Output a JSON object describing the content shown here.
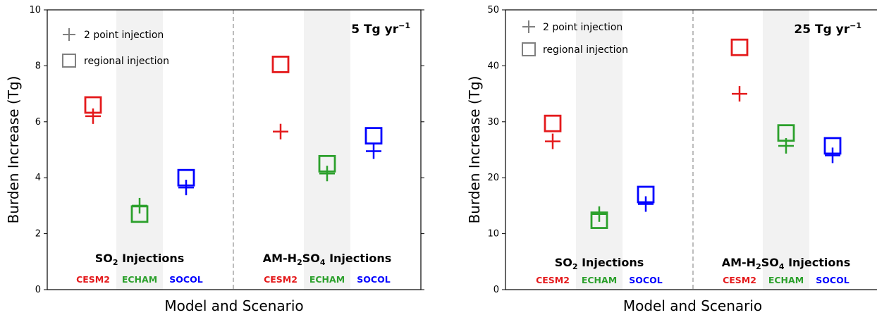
{
  "colors": {
    "CESM2": "#e41a1c",
    "ECHAM": "#2ca02c",
    "SOCOL": "#0000ff",
    "shade": "#f2f2f2",
    "legend": "#808080"
  },
  "legend": {
    "point": "2 point injection",
    "regional": "regional injection"
  },
  "chart_data": [
    {
      "type": "scatter",
      "rate_label": "5 Tg yr",
      "rate_sup": "−1",
      "xlabel": "Model and Scenario",
      "ylabel": "Burden Increase (Tg)",
      "ylim": [
        0,
        10
      ],
      "yticks": [
        0,
        2,
        4,
        6,
        8,
        10
      ],
      "groups": [
        {
          "title_pre": "SO",
          "title_sub": "2",
          "title_post": " Injections",
          "models": [
            {
              "name": "CESM2",
              "point": 6.2,
              "regional": 6.6
            },
            {
              "name": "ECHAM",
              "point": 3.0,
              "regional": 2.7
            },
            {
              "name": "SOCOL",
              "point": 3.65,
              "regional": 4.0
            }
          ]
        },
        {
          "title_pre": "AM-H",
          "title_sub": "2",
          "title_post": "SO",
          "title_sub2": "4",
          "title_post2": " Injections",
          "models": [
            {
              "name": "CESM2",
              "point": 5.65,
              "regional": 8.05
            },
            {
              "name": "ECHAM",
              "point": 4.15,
              "regional": 4.5
            },
            {
              "name": "SOCOL",
              "point": 4.95,
              "regional": 5.5
            }
          ]
        }
      ]
    },
    {
      "type": "scatter",
      "rate_label": "25 Tg yr",
      "rate_sup": "−1",
      "xlabel": "Model and Scenario",
      "ylabel": "Burden Increase (Tg)",
      "ylim": [
        0,
        50
      ],
      "yticks": [
        0,
        10,
        20,
        30,
        40,
        50
      ],
      "groups": [
        {
          "title_pre": "SO",
          "title_sub": "2",
          "title_post": " Injections",
          "models": [
            {
              "name": "CESM2",
              "point": 26.5,
              "regional": 29.7
            },
            {
              "name": "ECHAM",
              "point": 13.5,
              "regional": 12.4
            },
            {
              "name": "SOCOL",
              "point": 15.3,
              "regional": 17.0
            }
          ]
        },
        {
          "title_pre": "AM-H",
          "title_sub": "2",
          "title_post": "SO",
          "title_sub2": "4",
          "title_post2": " Injections",
          "models": [
            {
              "name": "CESM2",
              "point": 35.0,
              "regional": 43.3
            },
            {
              "name": "ECHAM",
              "point": 25.7,
              "regional": 28.0
            },
            {
              "name": "SOCOL",
              "point": 24.0,
              "regional": 25.7
            }
          ]
        }
      ]
    }
  ]
}
